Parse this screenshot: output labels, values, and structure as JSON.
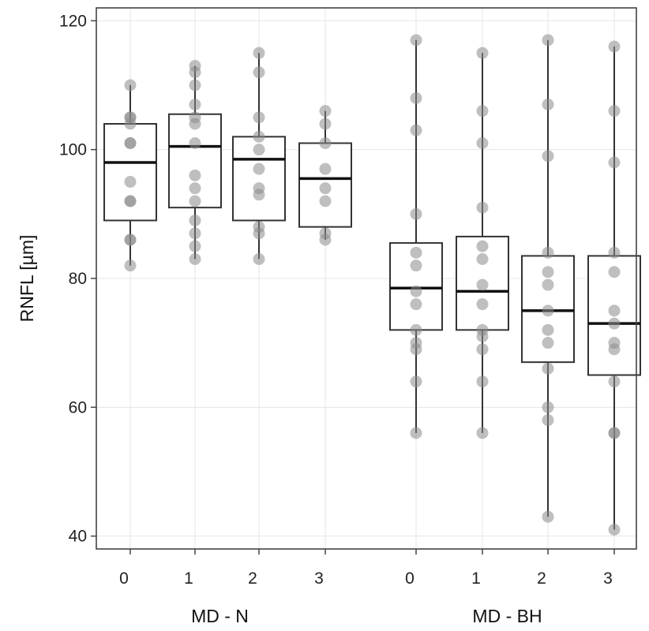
{
  "chart_data": {
    "type": "box",
    "title": "",
    "xlabel": "",
    "ylabel": "RNFL [µm]",
    "ylim": [
      38,
      122
    ],
    "yticks": [
      40,
      60,
      80,
      100,
      120
    ],
    "grid": true,
    "groups": [
      {
        "name": "MD - N",
        "categories": [
          {
            "label": "0",
            "min": 82,
            "q1": 89,
            "median": 98,
            "q3": 104,
            "max": 110,
            "points": [
              82,
              86,
              86,
              92,
              92,
              95,
              101,
              101,
              104,
              105,
              105,
              110
            ]
          },
          {
            "label": "1",
            "min": 83,
            "q1": 91,
            "median": 100.5,
            "q3": 105.5,
            "max": 113,
            "points": [
              83,
              85,
              87,
              89,
              92,
              94,
              96,
              101,
              104,
              105,
              107,
              110,
              112,
              113
            ]
          },
          {
            "label": "2",
            "min": 83,
            "q1": 89,
            "median": 98.5,
            "q3": 102,
            "max": 115,
            "points": [
              83,
              87,
              88,
              93,
              94,
              97,
              100,
              102,
              105,
              112,
              115
            ]
          },
          {
            "label": "3",
            "min": 86,
            "q1": 88,
            "median": 95.5,
            "q3": 101,
            "max": 106,
            "points": [
              86,
              87,
              92,
              94,
              97,
              101,
              104,
              106
            ]
          }
        ]
      },
      {
        "name": "MD - BH",
        "categories": [
          {
            "label": "0",
            "min": 56,
            "q1": 72,
            "median": 78.5,
            "q3": 85.5,
            "max": 117,
            "points": [
              56,
              64,
              69,
              70,
              72,
              76,
              78,
              82,
              84,
              90,
              103,
              108,
              117
            ]
          },
          {
            "label": "1",
            "min": 56,
            "q1": 72,
            "median": 78,
            "q3": 86.5,
            "max": 115,
            "points": [
              56,
              64,
              69,
              71,
              72,
              76,
              79,
              83,
              85,
              91,
              101,
              106,
              115
            ]
          },
          {
            "label": "2",
            "min": 43,
            "q1": 67,
            "median": 75,
            "q3": 83.5,
            "max": 117,
            "points": [
              43,
              58,
              60,
              66,
              70,
              72,
              75,
              79,
              81,
              84,
              99,
              107,
              117
            ]
          },
          {
            "label": "3",
            "min": 41,
            "q1": 65,
            "median": 73,
            "q3": 83.5,
            "max": 116,
            "points": [
              41,
              56,
              56,
              64,
              69,
              70,
              73,
              75,
              81,
              84,
              98,
              106,
              116
            ]
          }
        ]
      }
    ]
  }
}
